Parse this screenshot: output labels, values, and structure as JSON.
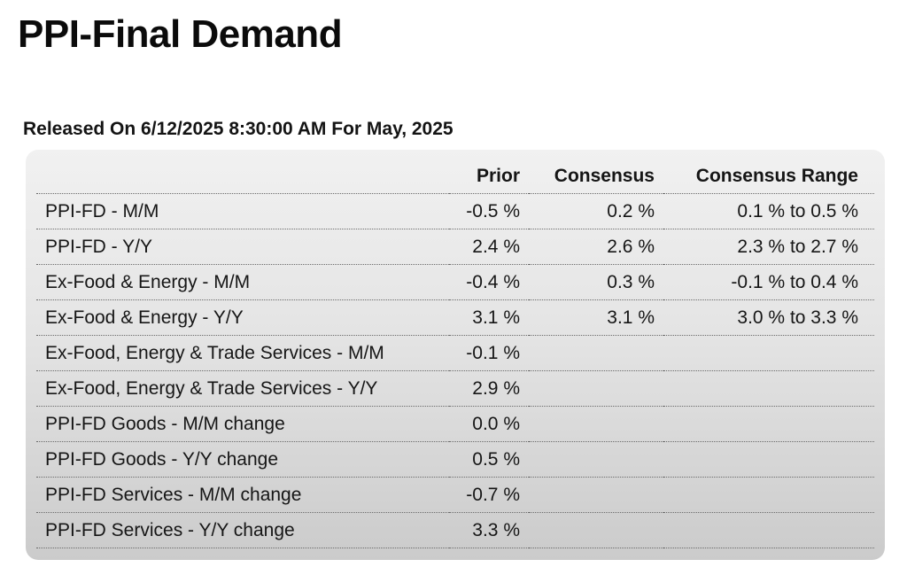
{
  "page": {
    "title": "PPI-Final Demand",
    "release_line": "Released On 6/12/2025 8:30:00 AM For May, 2025"
  },
  "table": {
    "headers": {
      "label": "",
      "prior": "Prior",
      "consensus": "Consensus",
      "consensus_range": "Consensus Range"
    },
    "rows": [
      {
        "label": "PPI-FD - M/M",
        "prior": "-0.5 %",
        "consensus": "0.2 %",
        "consensus_range": "0.1 % to 0.5 %"
      },
      {
        "label": "PPI-FD - Y/Y",
        "prior": "2.4 %",
        "consensus": "2.6 %",
        "consensus_range": "2.3 % to 2.7 %"
      },
      {
        "label": "Ex-Food & Energy - M/M",
        "prior": "-0.4 %",
        "consensus": "0.3 %",
        "consensus_range": "-0.1 % to 0.4 %"
      },
      {
        "label": "Ex-Food & Energy - Y/Y",
        "prior": "3.1 %",
        "consensus": "3.1 %",
        "consensus_range": "3.0 % to 3.3 %"
      },
      {
        "label": "Ex-Food, Energy & Trade Services - M/M",
        "prior": "-0.1 %",
        "consensus": "",
        "consensus_range": ""
      },
      {
        "label": "Ex-Food, Energy & Trade Services - Y/Y",
        "prior": "2.9 %",
        "consensus": "",
        "consensus_range": ""
      },
      {
        "label": "PPI-FD Goods - M/M change",
        "prior": "0.0 %",
        "consensus": "",
        "consensus_range": ""
      },
      {
        "label": "PPI-FD Goods - Y/Y change",
        "prior": "0.5 %",
        "consensus": "",
        "consensus_range": ""
      },
      {
        "label": "PPI-FD Services - M/M change",
        "prior": "-0.7 %",
        "consensus": "",
        "consensus_range": ""
      },
      {
        "label": "PPI-FD Services - Y/Y change",
        "prior": "3.3 %",
        "consensus": "",
        "consensus_range": ""
      }
    ]
  }
}
